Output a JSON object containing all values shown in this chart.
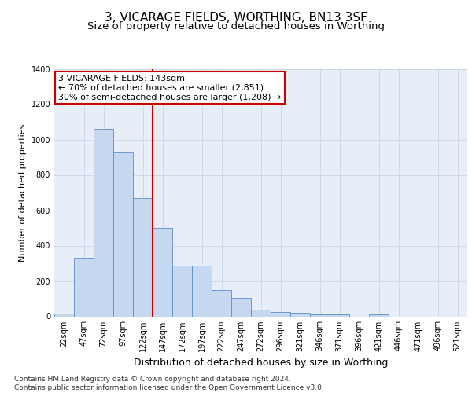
{
  "title": "3, VICARAGE FIELDS, WORTHING, BN13 3SF",
  "subtitle": "Size of property relative to detached houses in Worthing",
  "xlabel": "Distribution of detached houses by size in Worthing",
  "ylabel": "Number of detached properties",
  "categories": [
    "22sqm",
    "47sqm",
    "72sqm",
    "97sqm",
    "122sqm",
    "147sqm",
    "172sqm",
    "197sqm",
    "222sqm",
    "247sqm",
    "272sqm",
    "296sqm",
    "321sqm",
    "346sqm",
    "371sqm",
    "396sqm",
    "421sqm",
    "446sqm",
    "471sqm",
    "496sqm",
    "521sqm"
  ],
  "values": [
    15,
    330,
    1060,
    925,
    670,
    500,
    285,
    285,
    150,
    105,
    40,
    25,
    20,
    10,
    10,
    0,
    10,
    0,
    0,
    0,
    0
  ],
  "bar_color": "#c5d8f0",
  "bar_edge_color": "#5b8dc8",
  "vline_color": "#cc0000",
  "vline_x": 5,
  "annotation_text": "3 VICARAGE FIELDS: 143sqm\n← 70% of detached houses are smaller (2,851)\n30% of semi-detached houses are larger (1,208) →",
  "annotation_box_facecolor": "#ffffff",
  "annotation_box_edgecolor": "#cc0000",
  "ylim": [
    0,
    1400
  ],
  "yticks": [
    0,
    200,
    400,
    600,
    800,
    1000,
    1200,
    1400
  ],
  "grid_color": "#c8d4e8",
  "bg_color": "#e8eef8",
  "footer_text": "Contains HM Land Registry data © Crown copyright and database right 2024.\nContains public sector information licensed under the Open Government Licence v3.0.",
  "title_fontsize": 11,
  "subtitle_fontsize": 9.5,
  "xlabel_fontsize": 9,
  "ylabel_fontsize": 8,
  "tick_fontsize": 7,
  "annotation_fontsize": 8,
  "footer_fontsize": 6.5
}
